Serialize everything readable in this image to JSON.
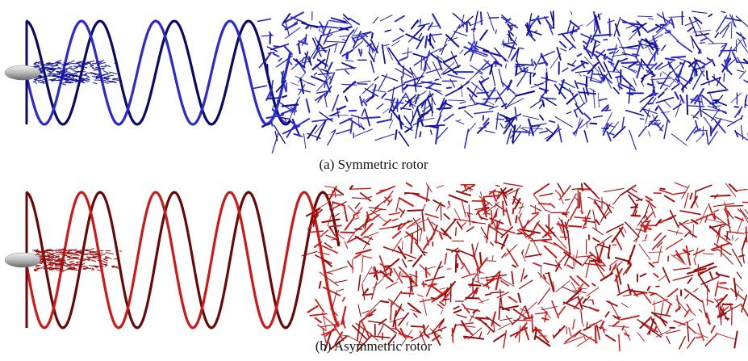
{
  "figure": {
    "panels": [
      {
        "caption": "(a) Symmetric rotor"
      },
      {
        "caption": "(b) Asymmetric rotor"
      }
    ]
  }
}
